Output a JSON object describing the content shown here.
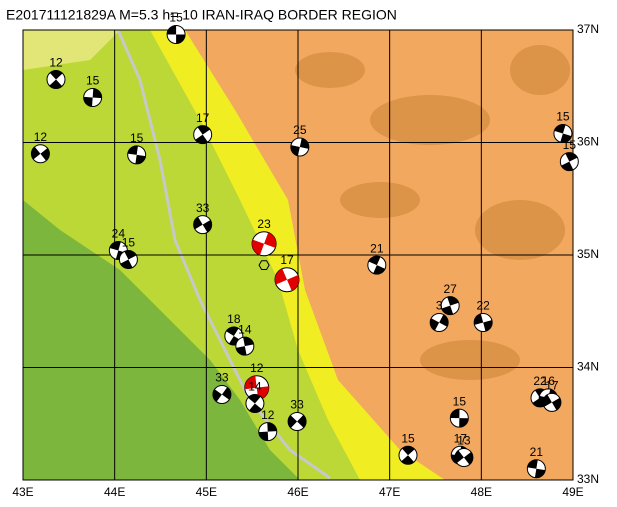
{
  "map": {
    "title": "E201711121829A  M=5.3  h= 10  IRAN-IRAQ BORDER REGION",
    "xlim": [
      43,
      49
    ],
    "ylim": [
      33,
      37
    ],
    "xticks": [
      {
        "value": 43,
        "label": "43E"
      },
      {
        "value": 44,
        "label": "44E"
      },
      {
        "value": 45,
        "label": "45E"
      },
      {
        "value": 46,
        "label": "46E"
      },
      {
        "value": 47,
        "label": "47E"
      },
      {
        "value": 48,
        "label": "48E"
      },
      {
        "value": 49,
        "label": "49E"
      }
    ],
    "yticks": [
      {
        "value": 33,
        "label": "33N"
      },
      {
        "value": 34,
        "label": "34N"
      },
      {
        "value": 35,
        "label": "35N"
      },
      {
        "value": 36,
        "label": "36N"
      },
      {
        "value": 37,
        "label": "37N"
      }
    ],
    "epicenter": {
      "lon": 45.63,
      "lat": 34.91
    },
    "events": [
      {
        "lon": 44.67,
        "lat": 36.96,
        "depth": "15",
        "color": "#000000"
      },
      {
        "lon": 43.36,
        "lat": 36.56,
        "depth": "12",
        "color": "#000000"
      },
      {
        "lon": 43.76,
        "lat": 36.4,
        "depth": "15",
        "color": "#000000"
      },
      {
        "lon": 43.19,
        "lat": 35.9,
        "depth": "12",
        "color": "#000000"
      },
      {
        "lon": 44.24,
        "lat": 35.89,
        "depth": "15",
        "color": "#000000"
      },
      {
        "lon": 44.96,
        "lat": 36.07,
        "depth": "17",
        "color": "#000000"
      },
      {
        "lon": 46.02,
        "lat": 35.96,
        "depth": "25",
        "color": "#000000"
      },
      {
        "lon": 44.96,
        "lat": 35.27,
        "depth": "33",
        "color": "#000000"
      },
      {
        "lon": 44.04,
        "lat": 35.04,
        "depth": "24",
        "color": "#000000"
      },
      {
        "lon": 44.15,
        "lat": 34.96,
        "depth": "15",
        "color": "#000000"
      },
      {
        "lon": 45.63,
        "lat": 35.1,
        "depth": "23",
        "color": "#e00000"
      },
      {
        "lon": 45.88,
        "lat": 34.78,
        "depth": "17",
        "color": "#e00000"
      },
      {
        "lon": 46.86,
        "lat": 34.91,
        "depth": "21",
        "color": "#000000"
      },
      {
        "lon": 47.66,
        "lat": 34.55,
        "depth": "27",
        "color": "#000000"
      },
      {
        "lon": 47.54,
        "lat": 34.4,
        "depth": "3",
        "color": "#000000"
      },
      {
        "lon": 48.02,
        "lat": 34.4,
        "depth": "22",
        "color": "#000000"
      },
      {
        "lon": 45.3,
        "lat": 34.28,
        "depth": "18",
        "color": "#000000"
      },
      {
        "lon": 45.42,
        "lat": 34.19,
        "depth": "14",
        "color": "#000000"
      },
      {
        "lon": 45.17,
        "lat": 33.76,
        "depth": "33",
        "color": "#000000"
      },
      {
        "lon": 45.55,
        "lat": 33.82,
        "depth": "12",
        "color": "#e00000"
      },
      {
        "lon": 45.53,
        "lat": 33.68,
        "depth": "14",
        "color": "#000000"
      },
      {
        "lon": 45.67,
        "lat": 33.43,
        "depth": "12",
        "color": "#000000"
      },
      {
        "lon": 45.99,
        "lat": 33.52,
        "depth": "33",
        "color": "#000000"
      },
      {
        "lon": 47.76,
        "lat": 33.55,
        "depth": "15",
        "color": "#000000"
      },
      {
        "lon": 47.2,
        "lat": 33.22,
        "depth": "15",
        "color": "#000000"
      },
      {
        "lon": 47.77,
        "lat": 33.22,
        "depth": "17",
        "color": "#000000"
      },
      {
        "lon": 47.81,
        "lat": 33.2,
        "depth": "13",
        "color": "#000000"
      },
      {
        "lon": 48.6,
        "lat": 33.1,
        "depth": "21",
        "color": "#000000"
      },
      {
        "lon": 48.64,
        "lat": 33.73,
        "depth": "22",
        "color": "#000000"
      },
      {
        "lon": 48.73,
        "lat": 33.73,
        "depth": "16",
        "color": "#000000"
      },
      {
        "lon": 48.77,
        "lat": 33.69,
        "depth": "17",
        "color": "#000000"
      },
      {
        "lon": 48.89,
        "lat": 36.08,
        "depth": "15",
        "color": "#000000"
      },
      {
        "lon": 48.96,
        "lat": 35.83,
        "depth": "15",
        "color": "#000000"
      }
    ]
  }
}
